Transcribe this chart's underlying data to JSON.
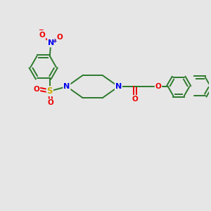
{
  "bg_color": "#e6e6e6",
  "colors": {
    "bond": "#2d7a2d",
    "N": "#0000ee",
    "O": "#ee0000",
    "S": "#ccaa00"
  },
  "lw": 1.4,
  "fontsize": 7.5
}
